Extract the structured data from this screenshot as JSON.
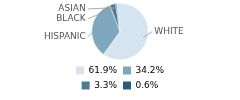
{
  "chart_data": {
    "type": "pie",
    "categories": [
      "WHITE",
      "HISPANIC",
      "BLACK",
      "ASIAN"
    ],
    "values": [
      61.9,
      34.2,
      3.3,
      0.6
    ],
    "value_labels": [
      "61.9%",
      "34.2%",
      "3.3%",
      "0.6%"
    ],
    "colors": [
      "#d6e4f0",
      "#7fa8bf",
      "#4d7a96",
      "#2c5a78"
    ],
    "legend": "bottom"
  }
}
